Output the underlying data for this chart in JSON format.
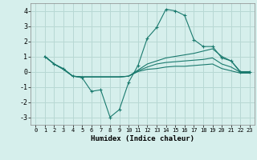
{
  "title": "",
  "xlabel": "Humidex (Indice chaleur)",
  "ylabel": "",
  "bg_color": "#d6efec",
  "grid_color": "#b8d8d4",
  "line_color": "#1a7a6e",
  "xlim": [
    -0.5,
    23.5
  ],
  "ylim": [
    -3.5,
    4.5
  ],
  "xticks": [
    0,
    1,
    2,
    3,
    4,
    5,
    6,
    7,
    8,
    9,
    10,
    11,
    12,
    13,
    14,
    15,
    16,
    17,
    18,
    19,
    20,
    21,
    22,
    23
  ],
  "yticks": [
    -3,
    -2,
    -1,
    0,
    1,
    2,
    3,
    4
  ],
  "lines": [
    {
      "x": [
        1,
        2,
        3,
        4,
        5,
        6,
        7,
        8,
        9,
        10,
        11,
        12,
        13,
        14,
        15,
        16,
        17,
        18,
        19,
        20,
        21,
        22,
        23
      ],
      "y": [
        1.0,
        0.5,
        0.2,
        -0.3,
        -0.4,
        -1.3,
        -1.2,
        -3.0,
        -2.5,
        -0.7,
        0.4,
        2.2,
        2.9,
        4.1,
        4.0,
        3.7,
        2.1,
        1.65,
        1.65,
        0.9,
        0.7,
        -0.05,
        -0.05
      ],
      "marker": "+"
    },
    {
      "x": [
        1,
        2,
        3,
        4,
        5,
        6,
        7,
        8,
        9,
        10,
        11,
        12,
        13,
        14,
        15,
        16,
        17,
        18,
        19,
        20,
        21,
        22,
        23
      ],
      "y": [
        1.0,
        0.5,
        0.15,
        -0.3,
        -0.35,
        -0.35,
        -0.35,
        -0.35,
        -0.35,
        -0.3,
        0.1,
        0.5,
        0.7,
        0.9,
        1.0,
        1.1,
        1.2,
        1.35,
        1.5,
        1.0,
        0.7,
        0.0,
        0.0
      ],
      "marker": null
    },
    {
      "x": [
        1,
        2,
        3,
        4,
        5,
        6,
        7,
        8,
        9,
        10,
        11,
        12,
        13,
        14,
        15,
        16,
        17,
        18,
        19,
        20,
        21,
        22,
        23
      ],
      "y": [
        1.0,
        0.5,
        0.15,
        -0.3,
        -0.35,
        -0.35,
        -0.35,
        -0.35,
        -0.35,
        -0.3,
        0.05,
        0.3,
        0.5,
        0.6,
        0.65,
        0.7,
        0.75,
        0.8,
        0.9,
        0.5,
        0.3,
        -0.05,
        -0.05
      ],
      "marker": null
    },
    {
      "x": [
        1,
        2,
        3,
        4,
        5,
        6,
        7,
        8,
        9,
        10,
        11,
        12,
        13,
        14,
        15,
        16,
        17,
        18,
        19,
        20,
        21,
        22,
        23
      ],
      "y": [
        1.0,
        0.5,
        0.15,
        -0.3,
        -0.35,
        -0.35,
        -0.35,
        -0.35,
        -0.35,
        -0.3,
        0.0,
        0.15,
        0.2,
        0.3,
        0.35,
        0.35,
        0.4,
        0.45,
        0.5,
        0.2,
        0.05,
        -0.1,
        -0.1
      ],
      "marker": null
    }
  ]
}
